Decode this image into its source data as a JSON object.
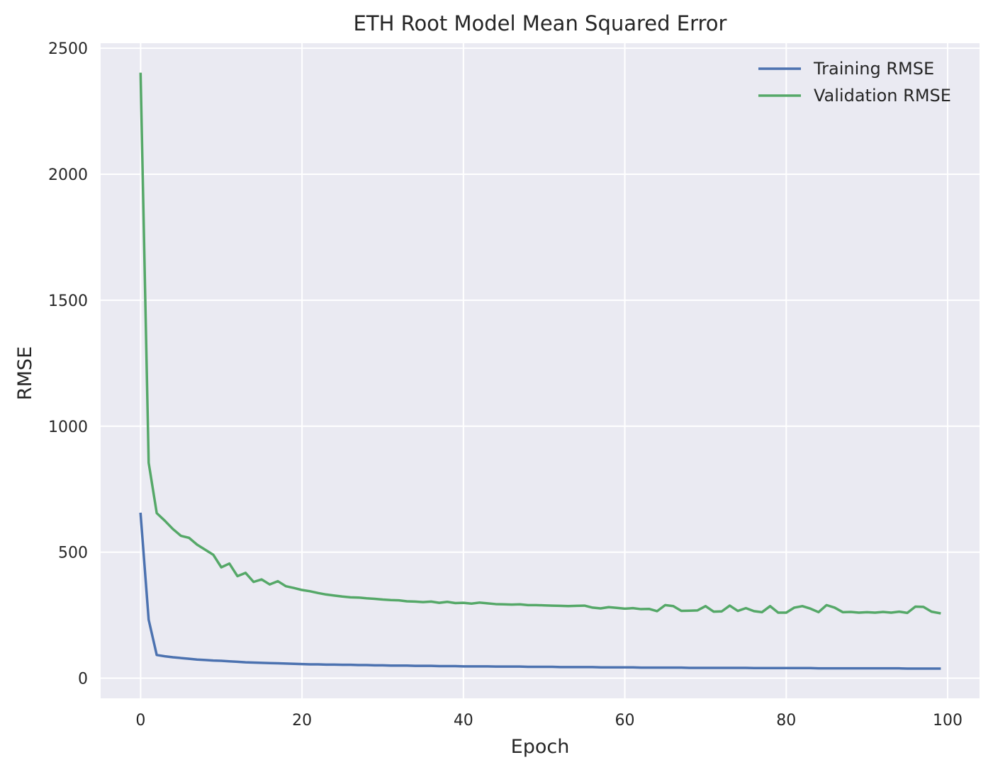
{
  "chart_data": {
    "type": "line",
    "title": "ETH Root Model Mean Squared Error",
    "xlabel": "Epoch",
    "ylabel": "RMSE",
    "xlim": [
      -4.95,
      103.95
    ],
    "ylim": [
      -80,
      2520
    ],
    "xticks": [
      0,
      20,
      40,
      60,
      80,
      100
    ],
    "yticks": [
      0,
      500,
      1000,
      1500,
      2000,
      2500
    ],
    "grid": true,
    "legend_position": "upper-right",
    "background": "#eaeaf2",
    "grid_color": "#ffffff",
    "series": [
      {
        "name": "Training RMSE",
        "color": "#4c72b0",
        "x_start": 0,
        "x_step": 1,
        "values": [
          652,
          232,
          92,
          87,
          83,
          80,
          77,
          74,
          72,
          70,
          69,
          67,
          65,
          63,
          62,
          61,
          60,
          59,
          58,
          57,
          56,
          55,
          55,
          54,
          54,
          53,
          53,
          52,
          52,
          51,
          51,
          50,
          50,
          50,
          49,
          49,
          49,
          48,
          48,
          48,
          47,
          47,
          47,
          47,
          46,
          46,
          46,
          46,
          45,
          45,
          45,
          45,
          44,
          44,
          44,
          44,
          44,
          43,
          43,
          43,
          43,
          43,
          42,
          42,
          42,
          42,
          42,
          42,
          41,
          41,
          41,
          41,
          41,
          41,
          41,
          41,
          40,
          40,
          40,
          40,
          40,
          40,
          40,
          40,
          39,
          39,
          39,
          39,
          39,
          39,
          39,
          39,
          39,
          39,
          39,
          38,
          38,
          38,
          38,
          38
        ]
      },
      {
        "name": "Validation RMSE",
        "color": "#55a868",
        "x_start": 0,
        "x_step": 1,
        "values": [
          2398,
          855,
          655,
          625,
          592,
          565,
          557,
          530,
          510,
          490,
          440,
          455,
          405,
          418,
          382,
          392,
          372,
          385,
          365,
          358,
          350,
          345,
          338,
          332,
          328,
          324,
          321,
          320,
          317,
          315,
          312,
          310,
          309,
          305,
          304,
          302,
          304,
          299,
          303,
          298,
          299,
          296,
          300,
          297,
          294,
          293,
          292,
          293,
          290,
          290,
          289,
          288,
          287,
          286,
          287,
          288,
          280,
          277,
          282,
          279,
          276,
          278,
          274,
          275,
          266,
          290,
          286,
          267,
          268,
          269,
          286,
          264,
          265,
          288,
          267,
          278,
          266,
          262,
          286,
          260,
          260,
          280,
          286,
          276,
          262,
          290,
          280,
          262,
          263,
          260,
          262,
          260,
          263,
          260,
          264,
          259,
          284,
          283,
          264,
          258
        ]
      }
    ]
  }
}
